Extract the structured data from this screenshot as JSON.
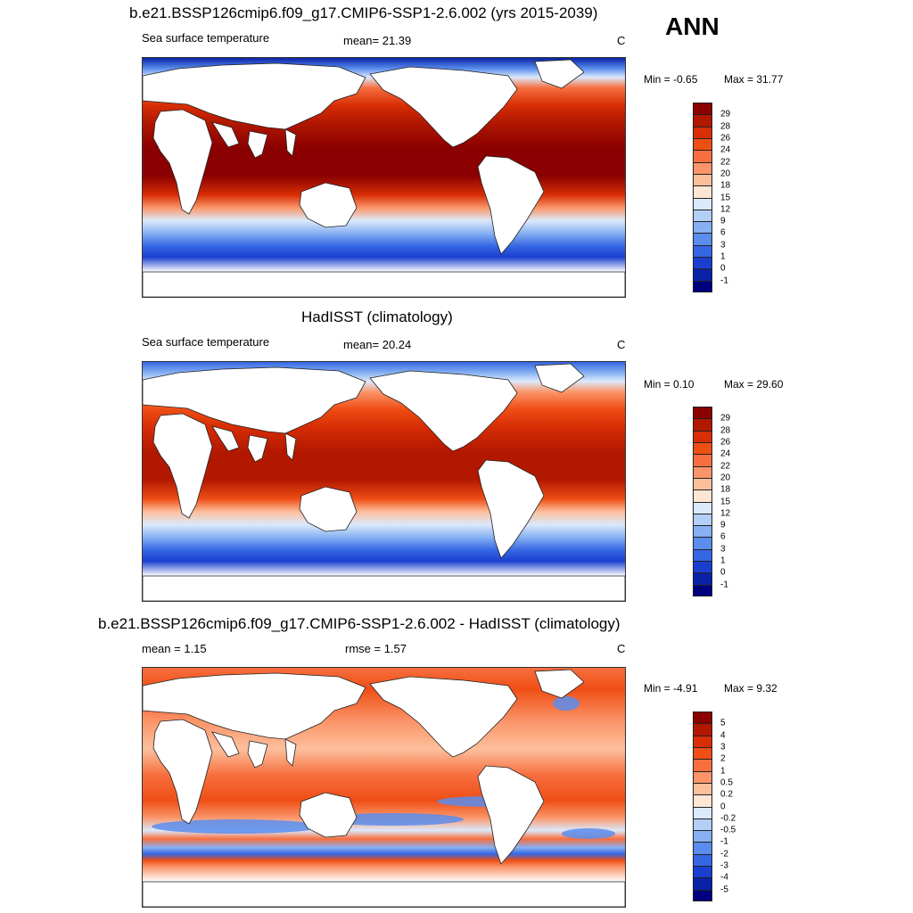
{
  "season": "ANN",
  "panels": [
    {
      "id": "model",
      "title": "b.e21.BSSP126cmip6.f09_g17.CMIP6-SSP1-2.6.002 (yrs 2015-2039)",
      "left_label": "Sea surface temperature",
      "center_label": "mean=  21.39",
      "units": "C",
      "min_text": "Min =  -0.65",
      "max_text": "Max =  31.77",
      "colorbar": {
        "ticks": [
          "29",
          "28",
          "26",
          "24",
          "22",
          "20",
          "18",
          "15",
          "12",
          "9",
          "6",
          "3",
          "1",
          "0",
          "-1"
        ],
        "colors": [
          "#8b0000",
          "#b21800",
          "#d82e05",
          "#ef4e15",
          "#f76f3f",
          "#fb9569",
          "#fcbf9c",
          "#fde6d4",
          "#dbe9fb",
          "#b4cff7",
          "#86b0f2",
          "#5a8ded",
          "#3566e3",
          "#1a3fd0",
          "#0a22a6",
          "#00007f"
        ]
      },
      "map": {
        "field": "model-sst",
        "equator_max_color": "#8b0000"
      }
    },
    {
      "id": "obs",
      "title": "HadISST (climatology)",
      "left_label": "Sea surface temperature",
      "center_label": "mean=  20.24",
      "units": "C",
      "min_text": "Min =   0.10",
      "max_text": "Max =  29.60",
      "colorbar": {
        "ticks": [
          "29",
          "28",
          "26",
          "24",
          "22",
          "20",
          "18",
          "15",
          "12",
          "9",
          "6",
          "3",
          "1",
          "0",
          "-1"
        ],
        "colors": [
          "#8b0000",
          "#b21800",
          "#d82e05",
          "#ef4e15",
          "#f76f3f",
          "#fb9569",
          "#fcbf9c",
          "#fde6d4",
          "#dbe9fb",
          "#b4cff7",
          "#86b0f2",
          "#5a8ded",
          "#3566e3",
          "#1a3fd0",
          "#0a22a6",
          "#00007f"
        ]
      },
      "map": {
        "field": "obs-sst",
        "equator_max_color": "#b21800"
      }
    },
    {
      "id": "diff",
      "title": "b.e21.BSSP126cmip6.f09_g17.CMIP6-SSP1-2.6.002 - HadISST (climatology)",
      "left_label": "mean =   1.15",
      "center_label": "rmse =   1.57",
      "units": "C",
      "min_text": "Min =  -4.91",
      "max_text": "Max =   9.32",
      "colorbar": {
        "ticks": [
          "5",
          "4",
          "3",
          "2",
          "1",
          "0.5",
          "0.2",
          "0",
          "-0.2",
          "-0.5",
          "-1",
          "-2",
          "-3",
          "-4",
          "-5"
        ],
        "colors": [
          "#8b0000",
          "#b21800",
          "#d82e05",
          "#ef4e15",
          "#f76f3f",
          "#fb9569",
          "#fcbf9c",
          "#fde6d4",
          "#dbe9fb",
          "#b4cff7",
          "#86b0f2",
          "#5a8ded",
          "#3566e3",
          "#1a3fd0",
          "#0a22a6",
          "#00007f"
        ]
      },
      "map": {
        "field": "diff-sst",
        "equator_max_color": "#ef4e15"
      }
    }
  ]
}
